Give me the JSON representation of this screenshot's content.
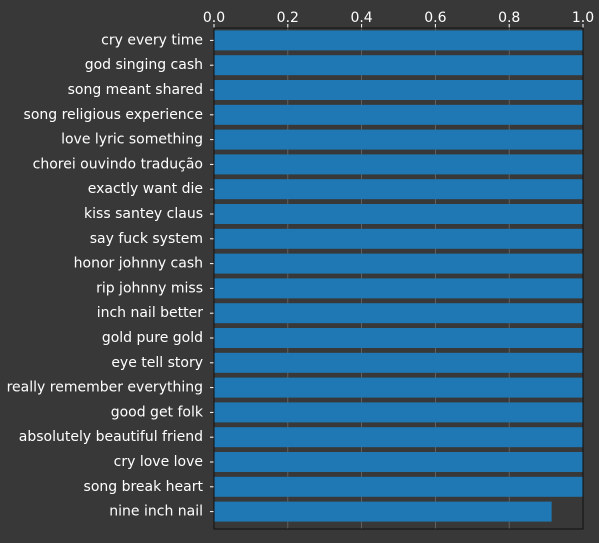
{
  "colors": {
    "background": "#383838",
    "bar": "#1f77b4",
    "text": "#ffffff",
    "axis": "#111111",
    "grid": "#6a6a6a"
  },
  "chart_data": {
    "type": "bar",
    "orientation": "horizontal",
    "title": "",
    "xlabel": "",
    "ylabel": "",
    "xlim": [
      0,
      1.0
    ],
    "x_ticks": [
      0.0,
      0.2,
      0.4,
      0.6,
      0.8,
      1.0
    ],
    "x_tick_labels": [
      "0.0",
      "0.2",
      "0.4",
      "0.6",
      "0.8",
      "1.0"
    ],
    "x_axis_position": "top",
    "grid": true,
    "legend": false,
    "categories": [
      "cry every time",
      "god singing cash",
      "song meant shared",
      "song religious experience",
      "love lyric something",
      "chorei ouvindo tradução",
      "exactly want die",
      "kiss santey claus",
      "say fuck system",
      "honor johnny cash",
      "rip johnny miss",
      "inch nail better",
      "gold pure gold",
      "eye tell story",
      "really remember everything",
      "good get folk",
      "absolutely beautiful friend",
      "cry love love",
      "song break heart",
      "nine inch nail"
    ],
    "values": [
      1.0,
      1.0,
      1.0,
      1.0,
      1.0,
      1.0,
      1.0,
      1.0,
      1.0,
      1.0,
      1.0,
      1.0,
      1.0,
      1.0,
      1.0,
      1.0,
      1.0,
      1.0,
      1.0,
      0.915
    ]
  }
}
